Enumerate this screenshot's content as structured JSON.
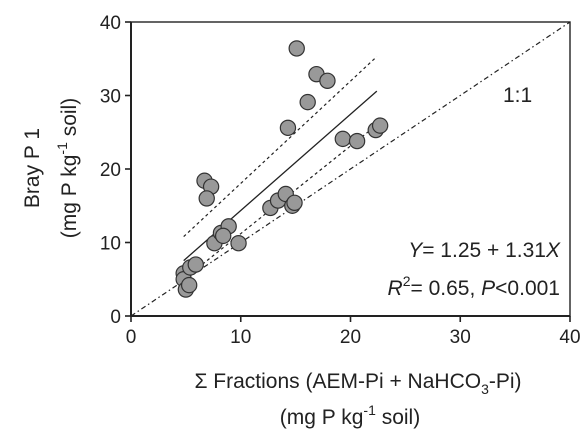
{
  "chart_data": {
    "type": "scatter",
    "title": "",
    "xlim": [
      0,
      40
    ],
    "ylim": [
      0,
      40
    ],
    "xticks": [
      "0",
      "10",
      "20",
      "30",
      "40"
    ],
    "yticks": [
      "0",
      "10",
      "20",
      "30",
      "40"
    ],
    "xlabel": {
      "prefix": "Σ Fractions (AEM-Pi + NaHCO",
      "sub": "3",
      "suffix": "-Pi)",
      "line2_prefix": "(mg P kg",
      "line2_sup": "-1",
      "line2_suffix": " soil)"
    },
    "ylabel": {
      "line1": "Bray P 1",
      "line2_prefix": "(mg P kg",
      "line2_sup": "-1",
      "line2_suffix": " soil)"
    },
    "reference_line": {
      "label": "1:1",
      "slope": 1,
      "intercept": 0
    },
    "regression": {
      "intercept": 1.25,
      "slope": 1.31,
      "x_range": [
        4.8,
        22.4
      ],
      "ci_upper": [
        [
          4.8,
          10.8
        ],
        [
          22.4,
          35.3
        ]
      ],
      "ci_lower": [
        [
          4.8,
          5.0
        ],
        [
          22.4,
          26.0
        ]
      ]
    },
    "equation": {
      "y": "Y",
      "eq": "= 1.25 + 1.31",
      "x": "X"
    },
    "stats": {
      "r": "R",
      "r_sup": "2",
      "text1": "= 0.65, ",
      "p": "P",
      "text2": "<0.001"
    },
    "points": [
      {
        "x": 4.8,
        "y": 5.8
      },
      {
        "x": 4.8,
        "y": 5.0
      },
      {
        "x": 5.0,
        "y": 3.6
      },
      {
        "x": 5.3,
        "y": 4.2
      },
      {
        "x": 5.4,
        "y": 6.6
      },
      {
        "x": 5.9,
        "y": 7.0
      },
      {
        "x": 6.7,
        "y": 18.4
      },
      {
        "x": 7.3,
        "y": 17.6
      },
      {
        "x": 6.9,
        "y": 16.0
      },
      {
        "x": 7.6,
        "y": 9.9
      },
      {
        "x": 8.2,
        "y": 11.3
      },
      {
        "x": 8.9,
        "y": 12.2
      },
      {
        "x": 8.4,
        "y": 10.9
      },
      {
        "x": 9.8,
        "y": 9.9
      },
      {
        "x": 12.7,
        "y": 14.7
      },
      {
        "x": 13.4,
        "y": 15.7
      },
      {
        "x": 14.1,
        "y": 16.6
      },
      {
        "x": 14.3,
        "y": 25.6
      },
      {
        "x": 14.7,
        "y": 15.0
      },
      {
        "x": 14.9,
        "y": 15.4
      },
      {
        "x": 15.1,
        "y": 36.4
      },
      {
        "x": 16.1,
        "y": 29.1
      },
      {
        "x": 16.9,
        "y": 32.9
      },
      {
        "x": 17.9,
        "y": 32.0
      },
      {
        "x": 19.3,
        "y": 24.1
      },
      {
        "x": 20.6,
        "y": 23.8
      },
      {
        "x": 22.3,
        "y": 25.3
      },
      {
        "x": 22.7,
        "y": 25.9
      }
    ]
  }
}
